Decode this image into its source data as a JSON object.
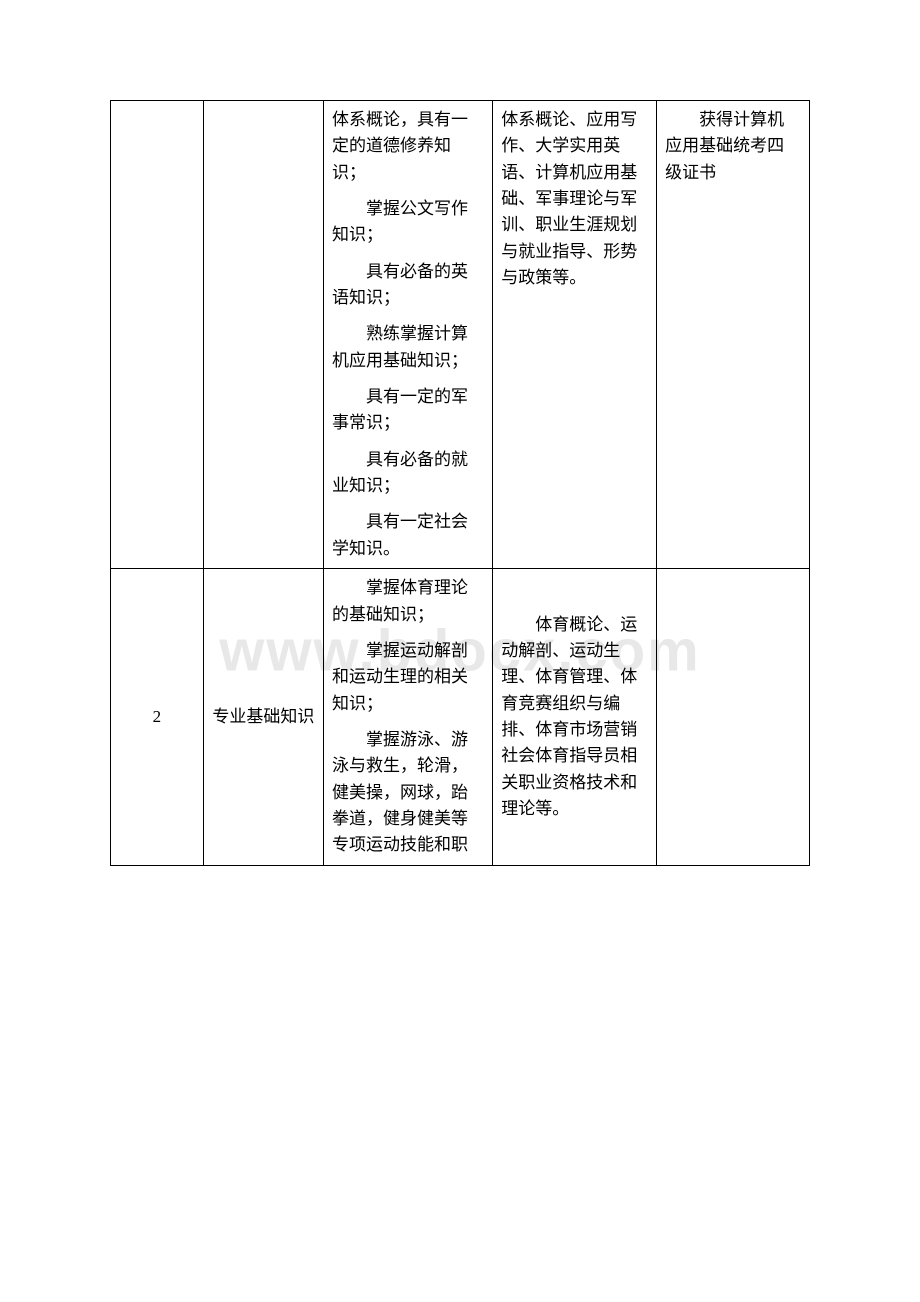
{
  "watermark": "www.bdocx.com",
  "table": {
    "columns": {
      "col1_width": 85,
      "col2_width": 110,
      "col3_width": 155,
      "col4_width": 150,
      "col5_width": 140
    },
    "colors": {
      "border": "#000000",
      "text": "#000000",
      "background": "#ffffff",
      "watermark": "#e8e8e8"
    },
    "fontsize": 17,
    "line_height": 1.55,
    "rows": [
      {
        "c1": "",
        "c2": "",
        "c3_paras": [
          "体系概论，具有一定的道德修养知识；",
          "掌握公文写作知识；",
          "具有必备的英语知识；",
          "熟练掌握计算机应用基础知识；",
          "具有一定的军事常识；",
          "具有必备的就业知识；",
          "具有一定社会学知识。"
        ],
        "c4_paras": [
          "体系概论、应用写作、大学实用英语、计算机应用基础、军事理论与军训、职业生涯规划与就业指导、形势与政策等。"
        ],
        "c5_paras": [
          "获得计算机应用基础统考四级证书"
        ]
      },
      {
        "c1": "2",
        "c2": "专业基础知识",
        "c3_paras": [
          "掌握体育理论的基础知识；",
          "掌握运动解剖和运动生理的相关知识；",
          "掌握游泳、游泳与救生，轮滑，健美操，网球，跆拳道，健身健美等专项运动技能和职"
        ],
        "c4_paras": [
          "体育概论、运动解剖、运动生理、体育管理、体育竞赛组织与编排、体育市场营销社会体育指导员相关职业资格技术和理论等。"
        ],
        "c5_paras": []
      }
    ]
  }
}
